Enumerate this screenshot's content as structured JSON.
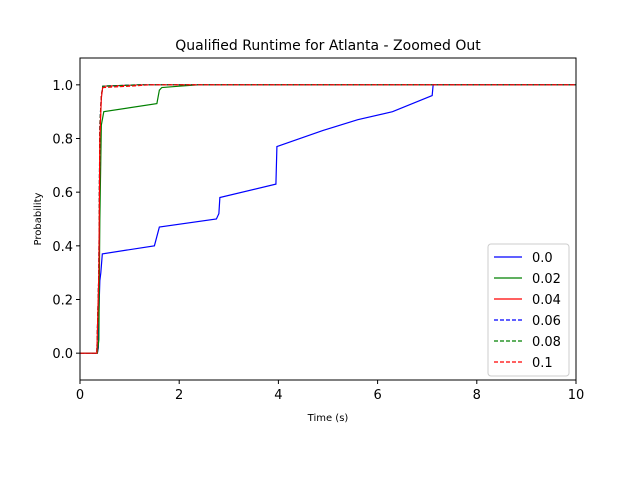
{
  "chart_data": {
    "type": "line",
    "title": "Qualified Runtime for Atlanta - Zoomed Out",
    "xlabel": "Time (s)",
    "ylabel": "Probability",
    "xlim": [
      0,
      10
    ],
    "ylim": [
      -0.1,
      1.1
    ],
    "xticks": [
      "0",
      "2",
      "4",
      "6",
      "8",
      "10"
    ],
    "yticks": [
      "0.0",
      "0.2",
      "0.4",
      "0.6",
      "0.8",
      "1.0"
    ],
    "grid": false,
    "legend_position": "lower-right",
    "series": [
      {
        "name": "0.0",
        "color": "#0000ff",
        "dash": "solid",
        "points": [
          [
            0,
            0
          ],
          [
            0.35,
            0
          ],
          [
            0.37,
            0.02
          ],
          [
            0.38,
            0.15
          ],
          [
            0.4,
            0.27
          ],
          [
            0.42,
            0.3
          ],
          [
            0.45,
            0.37
          ],
          [
            1.5,
            0.4
          ],
          [
            1.6,
            0.47
          ],
          [
            2.75,
            0.5
          ],
          [
            2.8,
            0.52
          ],
          [
            2.82,
            0.58
          ],
          [
            3.95,
            0.63
          ],
          [
            3.97,
            0.77
          ],
          [
            4.9,
            0.83
          ],
          [
            5.6,
            0.87
          ],
          [
            6.3,
            0.9
          ],
          [
            7.1,
            0.96
          ],
          [
            7.12,
            1.0
          ],
          [
            10,
            1.0
          ]
        ]
      },
      {
        "name": "0.02",
        "color": "#008000",
        "dash": "solid",
        "points": [
          [
            0,
            0
          ],
          [
            0.35,
            0
          ],
          [
            0.38,
            0.05
          ],
          [
            0.4,
            0.5
          ],
          [
            0.43,
            0.85
          ],
          [
            0.48,
            0.9
          ],
          [
            1.55,
            0.93
          ],
          [
            1.6,
            0.98
          ],
          [
            1.65,
            0.99
          ],
          [
            2.0,
            0.995
          ],
          [
            2.4,
            1.0
          ],
          [
            10,
            1.0
          ]
        ]
      },
      {
        "name": "0.04",
        "color": "#ff0000",
        "dash": "solid",
        "points": [
          [
            0,
            0
          ],
          [
            0.34,
            0
          ],
          [
            0.38,
            0.3
          ],
          [
            0.4,
            0.8
          ],
          [
            0.43,
            0.95
          ],
          [
            0.46,
            0.995
          ],
          [
            1.2,
            1.0
          ],
          [
            10,
            1.0
          ]
        ]
      },
      {
        "name": "0.06",
        "color": "#0000ff",
        "dash": "dashed",
        "points": [
          [
            0,
            0
          ],
          [
            0.34,
            0
          ],
          [
            0.38,
            0.3
          ],
          [
            0.4,
            0.85
          ],
          [
            0.43,
            0.96
          ],
          [
            0.46,
            0.995
          ],
          [
            1.2,
            1.0
          ],
          [
            10,
            1.0
          ]
        ]
      },
      {
        "name": "0.08",
        "color": "#008000",
        "dash": "dashed",
        "points": [
          [
            0,
            0
          ],
          [
            0.34,
            0
          ],
          [
            0.38,
            0.3
          ],
          [
            0.4,
            0.85
          ],
          [
            0.43,
            0.96
          ],
          [
            0.46,
            0.995
          ],
          [
            1.2,
            1.0
          ],
          [
            10,
            1.0
          ]
        ]
      },
      {
        "name": "0.1",
        "color": "#ff0000",
        "dash": "dashed",
        "points": [
          [
            0,
            0
          ],
          [
            0.34,
            0
          ],
          [
            0.38,
            0.3
          ],
          [
            0.4,
            0.82
          ],
          [
            0.43,
            0.96
          ],
          [
            0.46,
            0.99
          ],
          [
            1.0,
            0.995
          ],
          [
            1.4,
            1.0
          ],
          [
            10,
            1.0
          ]
        ]
      }
    ]
  }
}
